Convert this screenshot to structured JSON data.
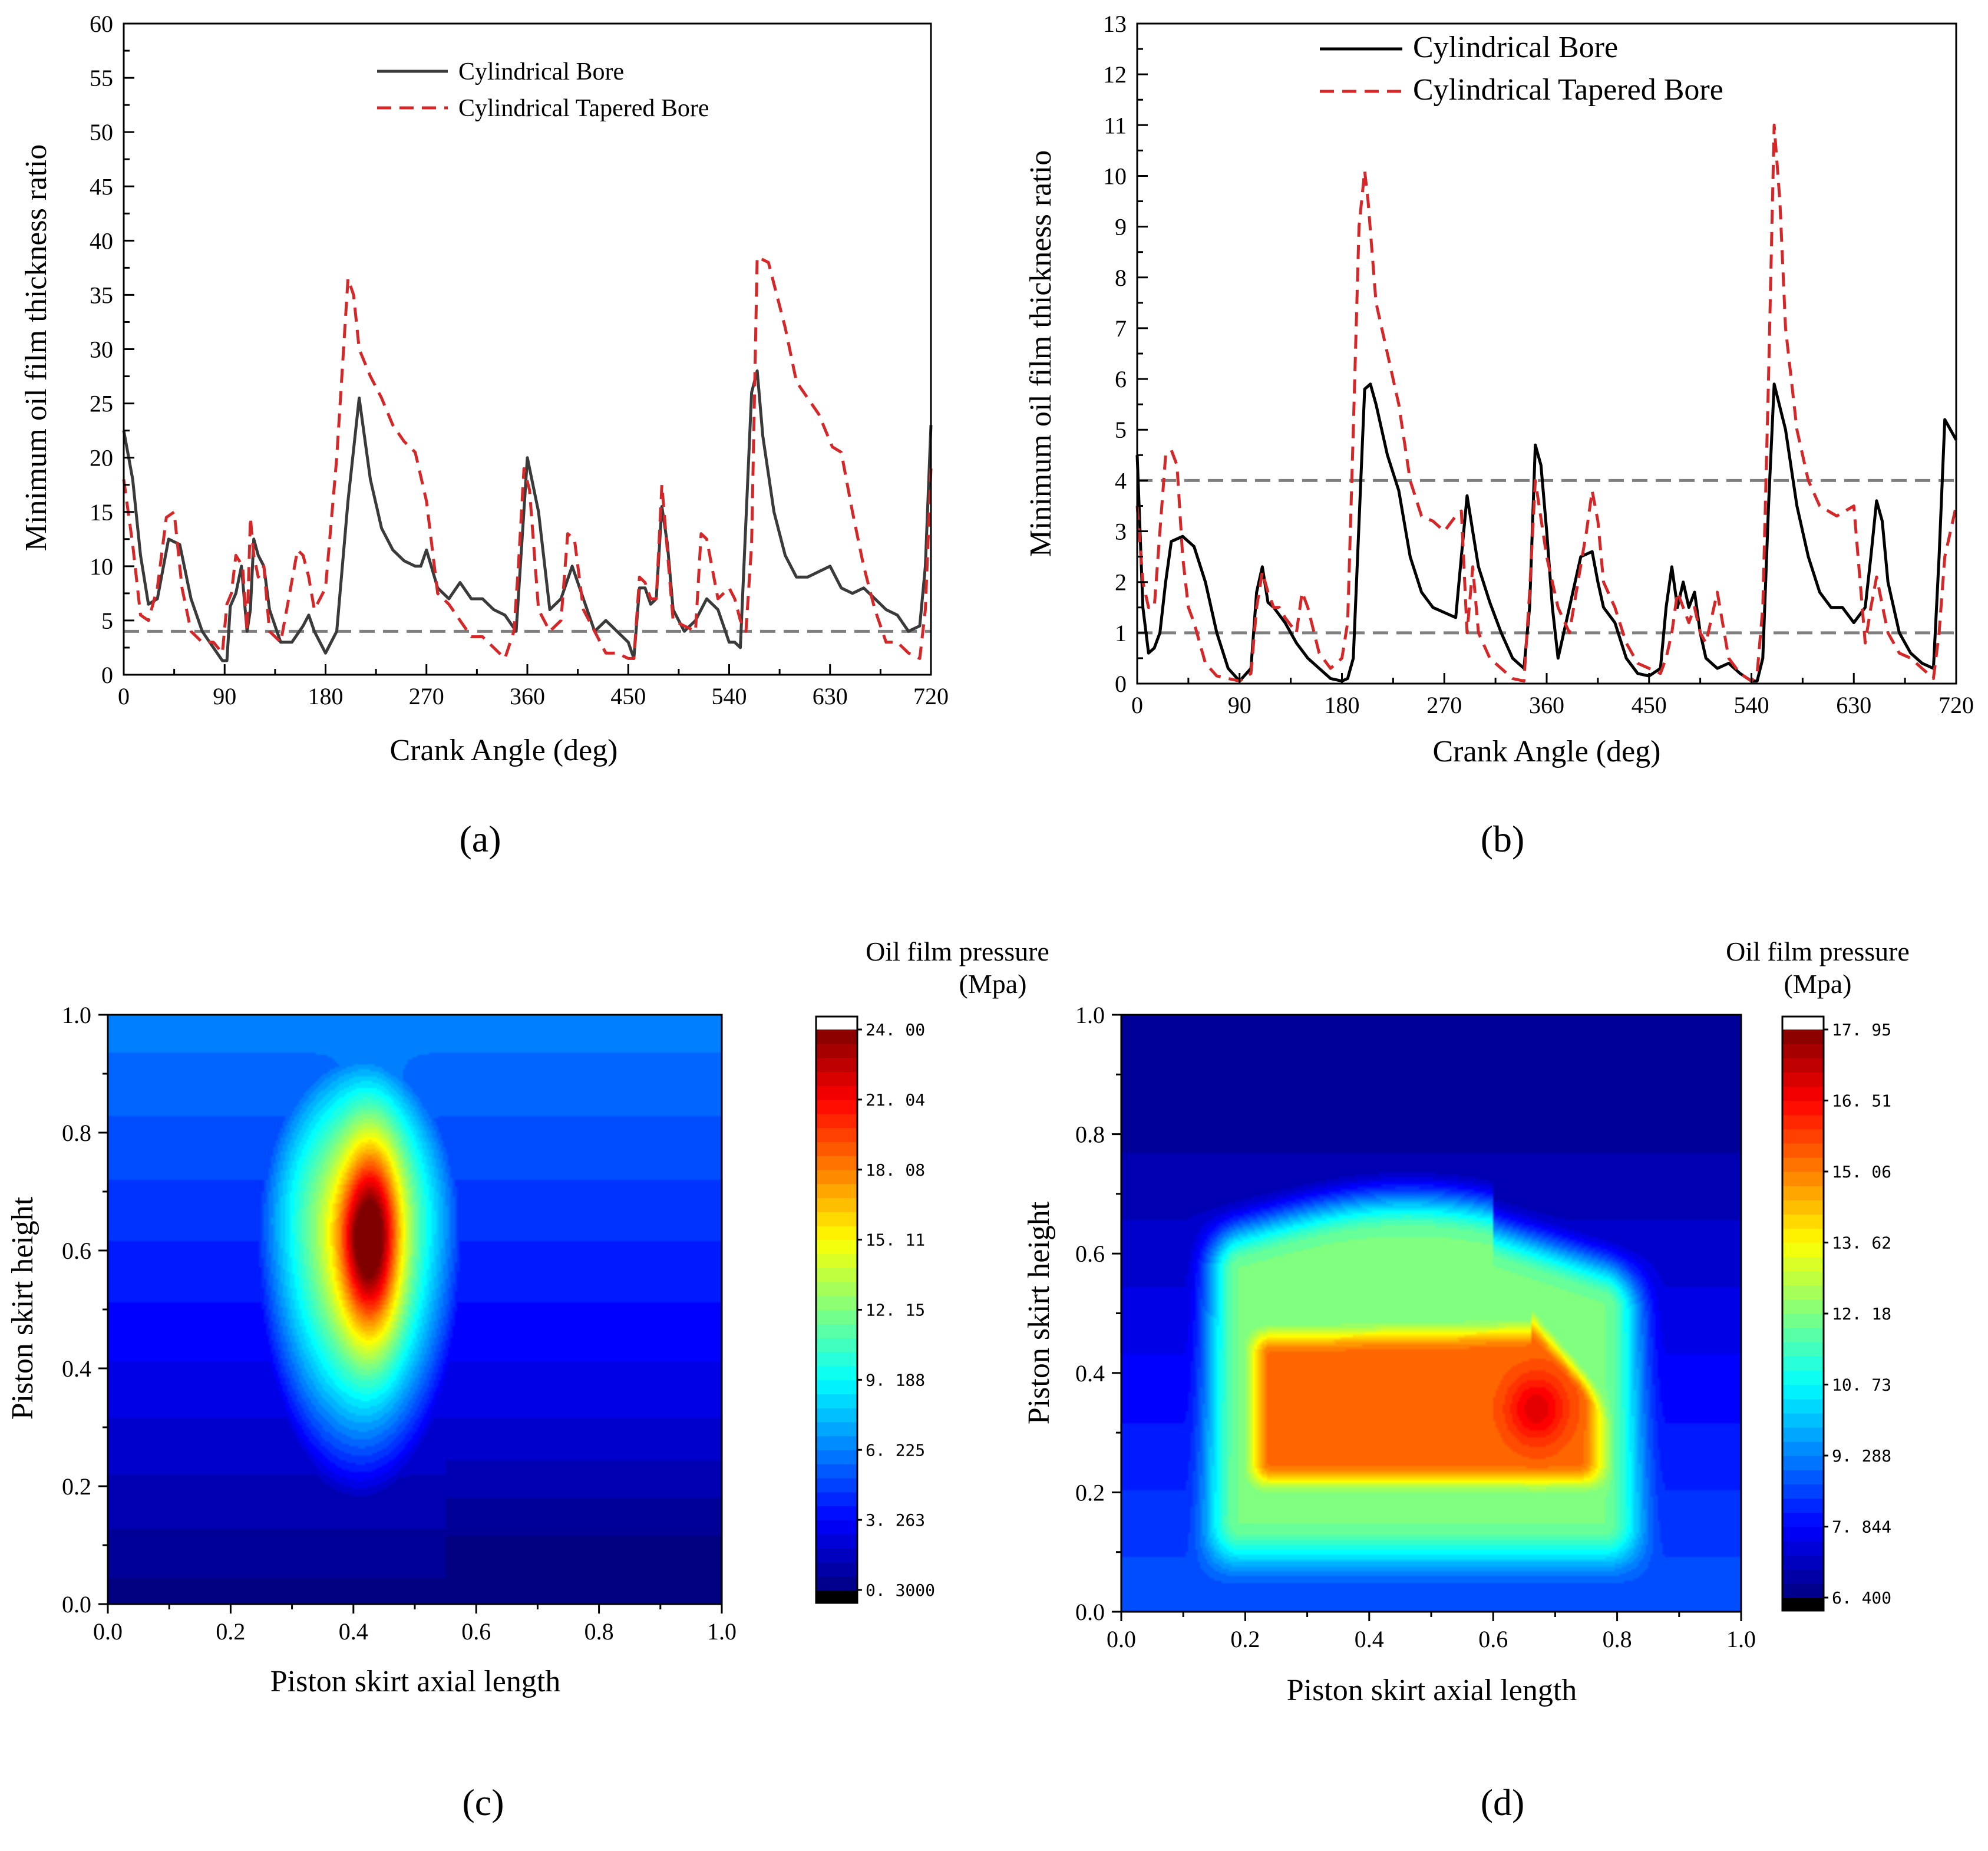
{
  "chart_data": [
    {
      "id": "a",
      "type": "line",
      "panel_label": "(a)",
      "xlabel": "Crank Angle (deg)",
      "ylabel": "Minimum oil film thickness ratio",
      "xlim": [
        0,
        720
      ],
      "ylim": [
        0,
        60
      ],
      "xticks": [
        0,
        90,
        180,
        270,
        360,
        450,
        540,
        630,
        720
      ],
      "yticks": [
        0,
        5,
        10,
        15,
        20,
        25,
        30,
        35,
        40,
        45,
        50,
        55,
        60
      ],
      "reference_lines": [
        4
      ],
      "legend": [
        "Cylindrical Bore",
        "Cylindrical Tapered Bore"
      ],
      "legend_position": "top-center",
      "series": [
        {
          "name": "Cylindrical Bore",
          "color": "#3a3a3a",
          "style": "solid",
          "x": [
            0,
            8,
            15,
            22,
            30,
            40,
            50,
            60,
            70,
            80,
            88,
            92,
            95,
            100,
            105,
            110,
            113,
            116,
            120,
            125,
            130,
            140,
            150,
            160,
            165,
            170,
            180,
            190,
            200,
            210,
            220,
            230,
            240,
            250,
            260,
            265,
            270,
            280,
            290,
            300,
            310,
            320,
            330,
            340,
            350,
            355,
            360,
            370,
            380,
            390,
            400,
            410,
            420,
            430,
            440,
            450,
            455,
            460,
            465,
            470,
            475,
            480,
            485,
            490,
            500,
            510,
            520,
            530,
            540,
            545,
            550,
            560,
            565,
            570,
            580,
            590,
            600,
            610,
            620,
            630,
            635,
            640,
            650,
            660,
            670,
            680,
            690,
            700,
            710,
            715,
            720
          ],
          "y": [
            22.5,
            18,
            11,
            6.5,
            7,
            12.5,
            12,
            7,
            4,
            2.5,
            1.3,
            1.3,
            6.3,
            7.5,
            10,
            4,
            6,
            12.5,
            11,
            10,
            6,
            3,
            3,
            4.5,
            5.5,
            4,
            2,
            4,
            16,
            25.5,
            18,
            13.5,
            11.5,
            10.5,
            10,
            10,
            11.5,
            8,
            7,
            8.5,
            7,
            7,
            6,
            5.5,
            4,
            12,
            20,
            15,
            6,
            7,
            10,
            7,
            4,
            5,
            4,
            3,
            1.5,
            8,
            8,
            6.5,
            7,
            15.5,
            12,
            6,
            4,
            5,
            7,
            6,
            3,
            3,
            2.5,
            26,
            28,
            22,
            15,
            11,
            9,
            9,
            9.5,
            10,
            9,
            8,
            7.5,
            8,
            7,
            6,
            5.5,
            4,
            4.5,
            10,
            23
          ]
        },
        {
          "name": "Cylindrical Tapered Bore",
          "color": "#d62728",
          "style": "dashed",
          "x": [
            0,
            8,
            15,
            22,
            30,
            38,
            45,
            52,
            60,
            70,
            80,
            88,
            92,
            96,
            100,
            106,
            110,
            113,
            116,
            120,
            125,
            130,
            140,
            148,
            155,
            160,
            165,
            170,
            180,
            190,
            200,
            205,
            210,
            220,
            230,
            240,
            250,
            260,
            270,
            280,
            290,
            300,
            310,
            320,
            330,
            340,
            348,
            352,
            357,
            362,
            370,
            380,
            390,
            396,
            402,
            410,
            420,
            430,
            440,
            450,
            455,
            460,
            465,
            470,
            475,
            480,
            490,
            500,
            510,
            515,
            520,
            530,
            540,
            545,
            550,
            555,
            560,
            565,
            575,
            590,
            600,
            620,
            632,
            640,
            650,
            660,
            670,
            680,
            690,
            700,
            710,
            715,
            720
          ],
          "y": [
            18,
            12,
            5.5,
            5,
            8,
            14.5,
            15,
            8,
            4,
            3,
            3,
            2,
            6.5,
            7.5,
            11,
            10,
            4,
            14.5,
            11,
            9,
            10,
            4,
            3,
            7.5,
            11.5,
            11,
            9,
            6,
            8,
            20,
            36.5,
            35,
            30,
            27.5,
            25.5,
            23,
            21.5,
            20.5,
            16,
            7.5,
            6.5,
            5,
            3.5,
            3.5,
            2.5,
            1.5,
            4,
            10,
            19,
            17,
            6,
            4,
            5,
            13,
            12.5,
            6,
            4,
            2,
            2,
            1.5,
            1.5,
            9,
            8.5,
            7,
            7,
            17.5,
            5,
            4.5,
            4,
            13,
            12.5,
            7,
            8,
            7,
            5,
            4,
            12,
            38.5,
            38,
            32,
            27,
            24,
            21,
            20.5,
            15,
            10,
            6,
            3,
            3,
            2,
            1.5,
            6,
            19
          ]
        }
      ]
    },
    {
      "id": "b",
      "type": "line",
      "panel_label": "(b)",
      "xlabel": "Crank Angle (deg)",
      "ylabel": "Minimum oil film thickness ratio",
      "xlim": [
        0,
        720
      ],
      "ylim": [
        0,
        13
      ],
      "xticks": [
        0,
        90,
        180,
        270,
        360,
        450,
        540,
        630,
        720
      ],
      "yticks": [
        0,
        1,
        2,
        3,
        4,
        5,
        6,
        7,
        8,
        9,
        10,
        11,
        12,
        13
      ],
      "reference_lines": [
        1,
        4
      ],
      "legend": [
        "Cylindrical Bore",
        "Cylindrical Tapered Bore"
      ],
      "legend_position": "top-left",
      "series": [
        {
          "name": "Cylindrical Bore",
          "color": "#000000",
          "style": "solid",
          "x": [
            0,
            5,
            10,
            15,
            20,
            25,
            30,
            40,
            50,
            60,
            70,
            80,
            90,
            100,
            105,
            110,
            115,
            120,
            130,
            140,
            150,
            160,
            170,
            180,
            185,
            190,
            200,
            205,
            210,
            220,
            230,
            240,
            250,
            260,
            270,
            280,
            285,
            290,
            295,
            300,
            310,
            320,
            330,
            340,
            345,
            350,
            355,
            360,
            365,
            370,
            380,
            390,
            400,
            405,
            410,
            420,
            430,
            440,
            450,
            460,
            465,
            470,
            475,
            480,
            485,
            490,
            495,
            500,
            510,
            520,
            530,
            540,
            545,
            550,
            555,
            560,
            570,
            580,
            590,
            600,
            610,
            620,
            630,
            640,
            645,
            650,
            655,
            660,
            670,
            680,
            690,
            700,
            705,
            710,
            720
          ],
          "y": [
            4.5,
            1.5,
            0.6,
            0.7,
            1,
            2,
            2.8,
            2.9,
            2.7,
            2,
            1,
            0.3,
            0.05,
            0.3,
            1.8,
            2.3,
            1.6,
            1.5,
            1.2,
            0.8,
            0.5,
            0.3,
            0.1,
            0.05,
            0.1,
            0.5,
            5.8,
            5.9,
            5.5,
            4.5,
            3.8,
            2.5,
            1.8,
            1.5,
            1.4,
            1.3,
            2.5,
            3.7,
            3,
            2.3,
            1.6,
            1,
            0.5,
            0.3,
            1.5,
            4.7,
            4.3,
            3,
            1.5,
            0.5,
            1.5,
            2.5,
            2.6,
            2,
            1.5,
            1.2,
            0.5,
            0.2,
            0.15,
            0.3,
            1.5,
            2.3,
            1.5,
            2,
            1.5,
            1.8,
            1,
            0.5,
            0.3,
            0.4,
            0.2,
            0.05,
            0.05,
            0.5,
            3.5,
            5.9,
            5,
            3.5,
            2.5,
            1.8,
            1.5,
            1.5,
            1.2,
            1.5,
            2.5,
            3.6,
            3.2,
            2,
            1,
            0.6,
            0.4,
            0.3,
            2.5,
            5.2,
            4.8
          ]
        },
        {
          "name": "Cylindrical Tapered Bore",
          "color": "#d62728",
          "style": "dashed",
          "x": [
            0,
            5,
            10,
            15,
            20,
            25,
            30,
            35,
            40,
            45,
            50,
            55,
            60,
            70,
            80,
            90,
            100,
            105,
            110,
            115,
            120,
            125,
            130,
            140,
            145,
            150,
            160,
            170,
            180,
            185,
            190,
            195,
            200,
            203,
            210,
            220,
            230,
            240,
            250,
            260,
            270,
            280,
            285,
            290,
            295,
            300,
            310,
            320,
            330,
            340,
            345,
            350,
            360,
            370,
            380,
            395,
            400,
            405,
            410,
            420,
            430,
            440,
            450,
            460,
            465,
            470,
            475,
            480,
            485,
            490,
            495,
            500,
            510,
            520,
            530,
            540,
            545,
            550,
            555,
            560,
            565,
            570,
            580,
            590,
            600,
            615,
            630,
            640,
            645,
            650,
            660,
            670,
            680,
            690,
            700,
            705,
            710,
            720
          ],
          "y": [
            3.5,
            2,
            1.5,
            1.5,
            3,
            4.5,
            4.6,
            4.3,
            2.5,
            1.5,
            1.2,
            0.8,
            0.4,
            0.15,
            0.1,
            0.05,
            0.2,
            1.5,
            2.2,
            1.8,
            1.5,
            1.5,
            1.3,
            1,
            1.8,
            1.5,
            0.6,
            0.3,
            0.5,
            1.2,
            5,
            9,
            10.1,
            9.5,
            7.5,
            6.5,
            5.5,
            4,
            3.3,
            3.2,
            3,
            3.3,
            3.4,
            1,
            2.3,
            1,
            0.5,
            0.3,
            0.1,
            0.05,
            1.8,
            4,
            2.5,
            1.5,
            1,
            3,
            3.8,
            3.2,
            2,
            1.5,
            0.8,
            0.4,
            0.3,
            0.2,
            0.5,
            1,
            1.8,
            1.5,
            1.2,
            1.5,
            1,
            0.8,
            1.8,
            0.5,
            0.2,
            0.05,
            0.2,
            1.5,
            6,
            11,
            9.5,
            7,
            5,
            4,
            3.5,
            3.3,
            3.5,
            0.8,
            1.5,
            2.1,
            1,
            0.6,
            0.5,
            0.3,
            0.1,
            1,
            2.5,
            3.5
          ]
        }
      ]
    },
    {
      "id": "c",
      "type": "heatmap",
      "panel_label": "(c)",
      "xlabel": "Piston skirt axial length",
      "ylabel": "Piston skirt height",
      "xlim": [
        0,
        1
      ],
      "ylim": [
        0,
        1
      ],
      "xticks": [
        "0.0",
        "0.2",
        "0.4",
        "0.6",
        "0.8",
        "1.0"
      ],
      "yticks": [
        "0.0",
        "0.2",
        "0.4",
        "0.6",
        "0.8",
        "1.0"
      ],
      "colorbar": {
        "title": "Oil film pressure",
        "unit": "(Mpa)",
        "min": 0.3,
        "max": 24.0,
        "labels": [
          "0. 3000",
          "3. 263",
          "6. 225",
          "9. 188",
          "12. 15",
          "15. 11",
          "18. 08",
          "21. 04",
          "24. 00"
        ]
      },
      "field": {
        "background_top": 6.7,
        "background_bottom": 0.3,
        "peak_value": 24.0,
        "peak_location": [
          0.43,
          0.62
        ]
      }
    },
    {
      "id": "d",
      "type": "heatmap",
      "panel_label": "(d)",
      "xlabel": "Piston skirt axial length",
      "ylabel": "Piston skirt height",
      "xlim": [
        0,
        1
      ],
      "ylim": [
        0,
        1
      ],
      "xticks": [
        "0.0",
        "0.2",
        "0.4",
        "0.6",
        "0.8",
        "1.0"
      ],
      "yticks": [
        "0.0",
        "0.2",
        "0.4",
        "0.6",
        "0.8",
        "1.0"
      ],
      "colorbar": {
        "title": "Oil film pressure",
        "unit": "(Mpa)",
        "min": 6.4,
        "max": 17.95,
        "labels": [
          "6. 400",
          "7. 844",
          "9. 288",
          "10. 73",
          "12. 18",
          "13. 62",
          "15. 06",
          "16. 51",
          "17. 95"
        ]
      },
      "field": {
        "background_top": 6.8,
        "background_bottom": 9.3,
        "peak_value": 17.95,
        "peak_location": [
          0.67,
          0.34
        ]
      }
    }
  ]
}
